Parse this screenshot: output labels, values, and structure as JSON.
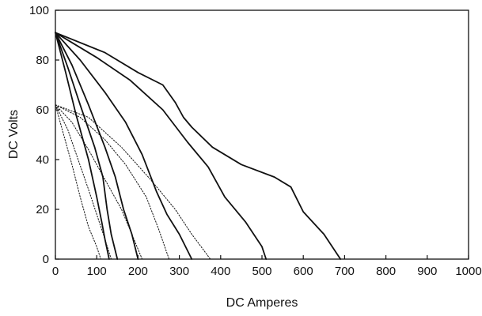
{
  "chart_data": {
    "type": "line",
    "title": "",
    "xlabel": "DC Amperes",
    "ylabel": "DC Volts",
    "xlim": [
      0,
      1000
    ],
    "ylim": [
      0,
      100
    ],
    "xticks": [
      0,
      100,
      200,
      300,
      400,
      500,
      600,
      700,
      800,
      900,
      1000
    ],
    "yticks": [
      0,
      20,
      40,
      60,
      80,
      100
    ],
    "grid": false,
    "legend": "none",
    "series": [
      {
        "style": "solid",
        "points": [
          [
            0,
            91
          ],
          [
            25,
            75
          ],
          [
            50,
            58
          ],
          [
            80,
            40
          ],
          [
            100,
            25
          ],
          [
            112,
            15
          ],
          [
            120,
            8
          ],
          [
            130,
            0
          ]
        ]
      },
      {
        "style": "solid",
        "points": [
          [
            0,
            91
          ],
          [
            30,
            77
          ],
          [
            60,
            62
          ],
          [
            95,
            45
          ],
          [
            115,
            33
          ],
          [
            125,
            20
          ],
          [
            135,
            10
          ],
          [
            150,
            0
          ]
        ]
      },
      {
        "style": "solid",
        "points": [
          [
            0,
            91
          ],
          [
            40,
            78
          ],
          [
            80,
            62
          ],
          [
            120,
            45
          ],
          [
            145,
            33
          ],
          [
            165,
            20
          ],
          [
            185,
            10
          ],
          [
            200,
            0
          ]
        ]
      },
      {
        "style": "solid",
        "points": [
          [
            0,
            91
          ],
          [
            60,
            80
          ],
          [
            120,
            67
          ],
          [
            170,
            55
          ],
          [
            210,
            42
          ],
          [
            245,
            27
          ],
          [
            270,
            18
          ],
          [
            300,
            10
          ],
          [
            330,
            0
          ]
        ]
      },
      {
        "style": "solid",
        "points": [
          [
            0,
            91
          ],
          [
            100,
            81
          ],
          [
            180,
            72
          ],
          [
            260,
            60
          ],
          [
            320,
            47
          ],
          [
            370,
            37
          ],
          [
            410,
            25
          ],
          [
            460,
            15
          ],
          [
            500,
            5
          ],
          [
            510,
            0
          ]
        ]
      },
      {
        "style": "solid",
        "points": [
          [
            0,
            91
          ],
          [
            120,
            83
          ],
          [
            200,
            75
          ],
          [
            260,
            70
          ],
          [
            290,
            63
          ],
          [
            310,
            57
          ],
          [
            330,
            53
          ],
          [
            380,
            45
          ],
          [
            450,
            38
          ],
          [
            530,
            33
          ],
          [
            570,
            29
          ],
          [
            600,
            19
          ],
          [
            650,
            10
          ],
          [
            690,
            0
          ]
        ]
      },
      {
        "style": "dotted",
        "points": [
          [
            0,
            62
          ],
          [
            20,
            50
          ],
          [
            40,
            38
          ],
          [
            60,
            25
          ],
          [
            80,
            13
          ],
          [
            100,
            5
          ],
          [
            110,
            0
          ]
        ]
      },
      {
        "style": "dotted",
        "points": [
          [
            0,
            62
          ],
          [
            30,
            52
          ],
          [
            55,
            40
          ],
          [
            80,
            28
          ],
          [
            100,
            18
          ],
          [
            120,
            8
          ],
          [
            135,
            0
          ]
        ]
      },
      {
        "style": "dotted",
        "points": [
          [
            0,
            62
          ],
          [
            40,
            55
          ],
          [
            80,
            44
          ],
          [
            120,
            32
          ],
          [
            160,
            20
          ],
          [
            190,
            8
          ],
          [
            210,
            0
          ]
        ]
      },
      {
        "style": "dotted",
        "points": [
          [
            0,
            62
          ],
          [
            60,
            57
          ],
          [
            120,
            48
          ],
          [
            170,
            38
          ],
          [
            220,
            25
          ],
          [
            250,
            12
          ],
          [
            275,
            0
          ]
        ]
      },
      {
        "style": "dotted",
        "points": [
          [
            0,
            62
          ],
          [
            80,
            57
          ],
          [
            160,
            45
          ],
          [
            230,
            32
          ],
          [
            290,
            20
          ],
          [
            330,
            10
          ],
          [
            375,
            0
          ]
        ]
      }
    ]
  }
}
